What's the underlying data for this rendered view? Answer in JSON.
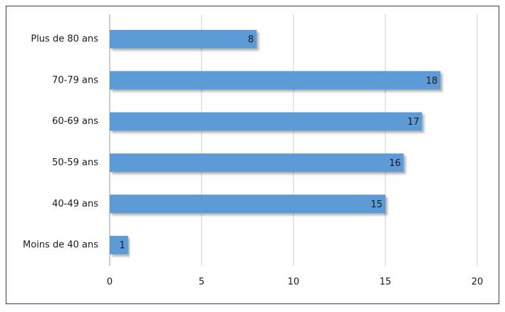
{
  "chart_data": {
    "type": "hbar",
    "categories": [
      "Plus de 80 ans",
      "70-79 ans",
      "60-69 ans",
      "50-59 ans",
      "40-49 ans",
      "Moins de 40 ans"
    ],
    "values": [
      8,
      18,
      17,
      16,
      15,
      1
    ],
    "color": "#5b9bd5",
    "xlim": [
      0,
      20
    ],
    "xticks": [
      0,
      5,
      10,
      15,
      20
    ],
    "grid": true
  }
}
